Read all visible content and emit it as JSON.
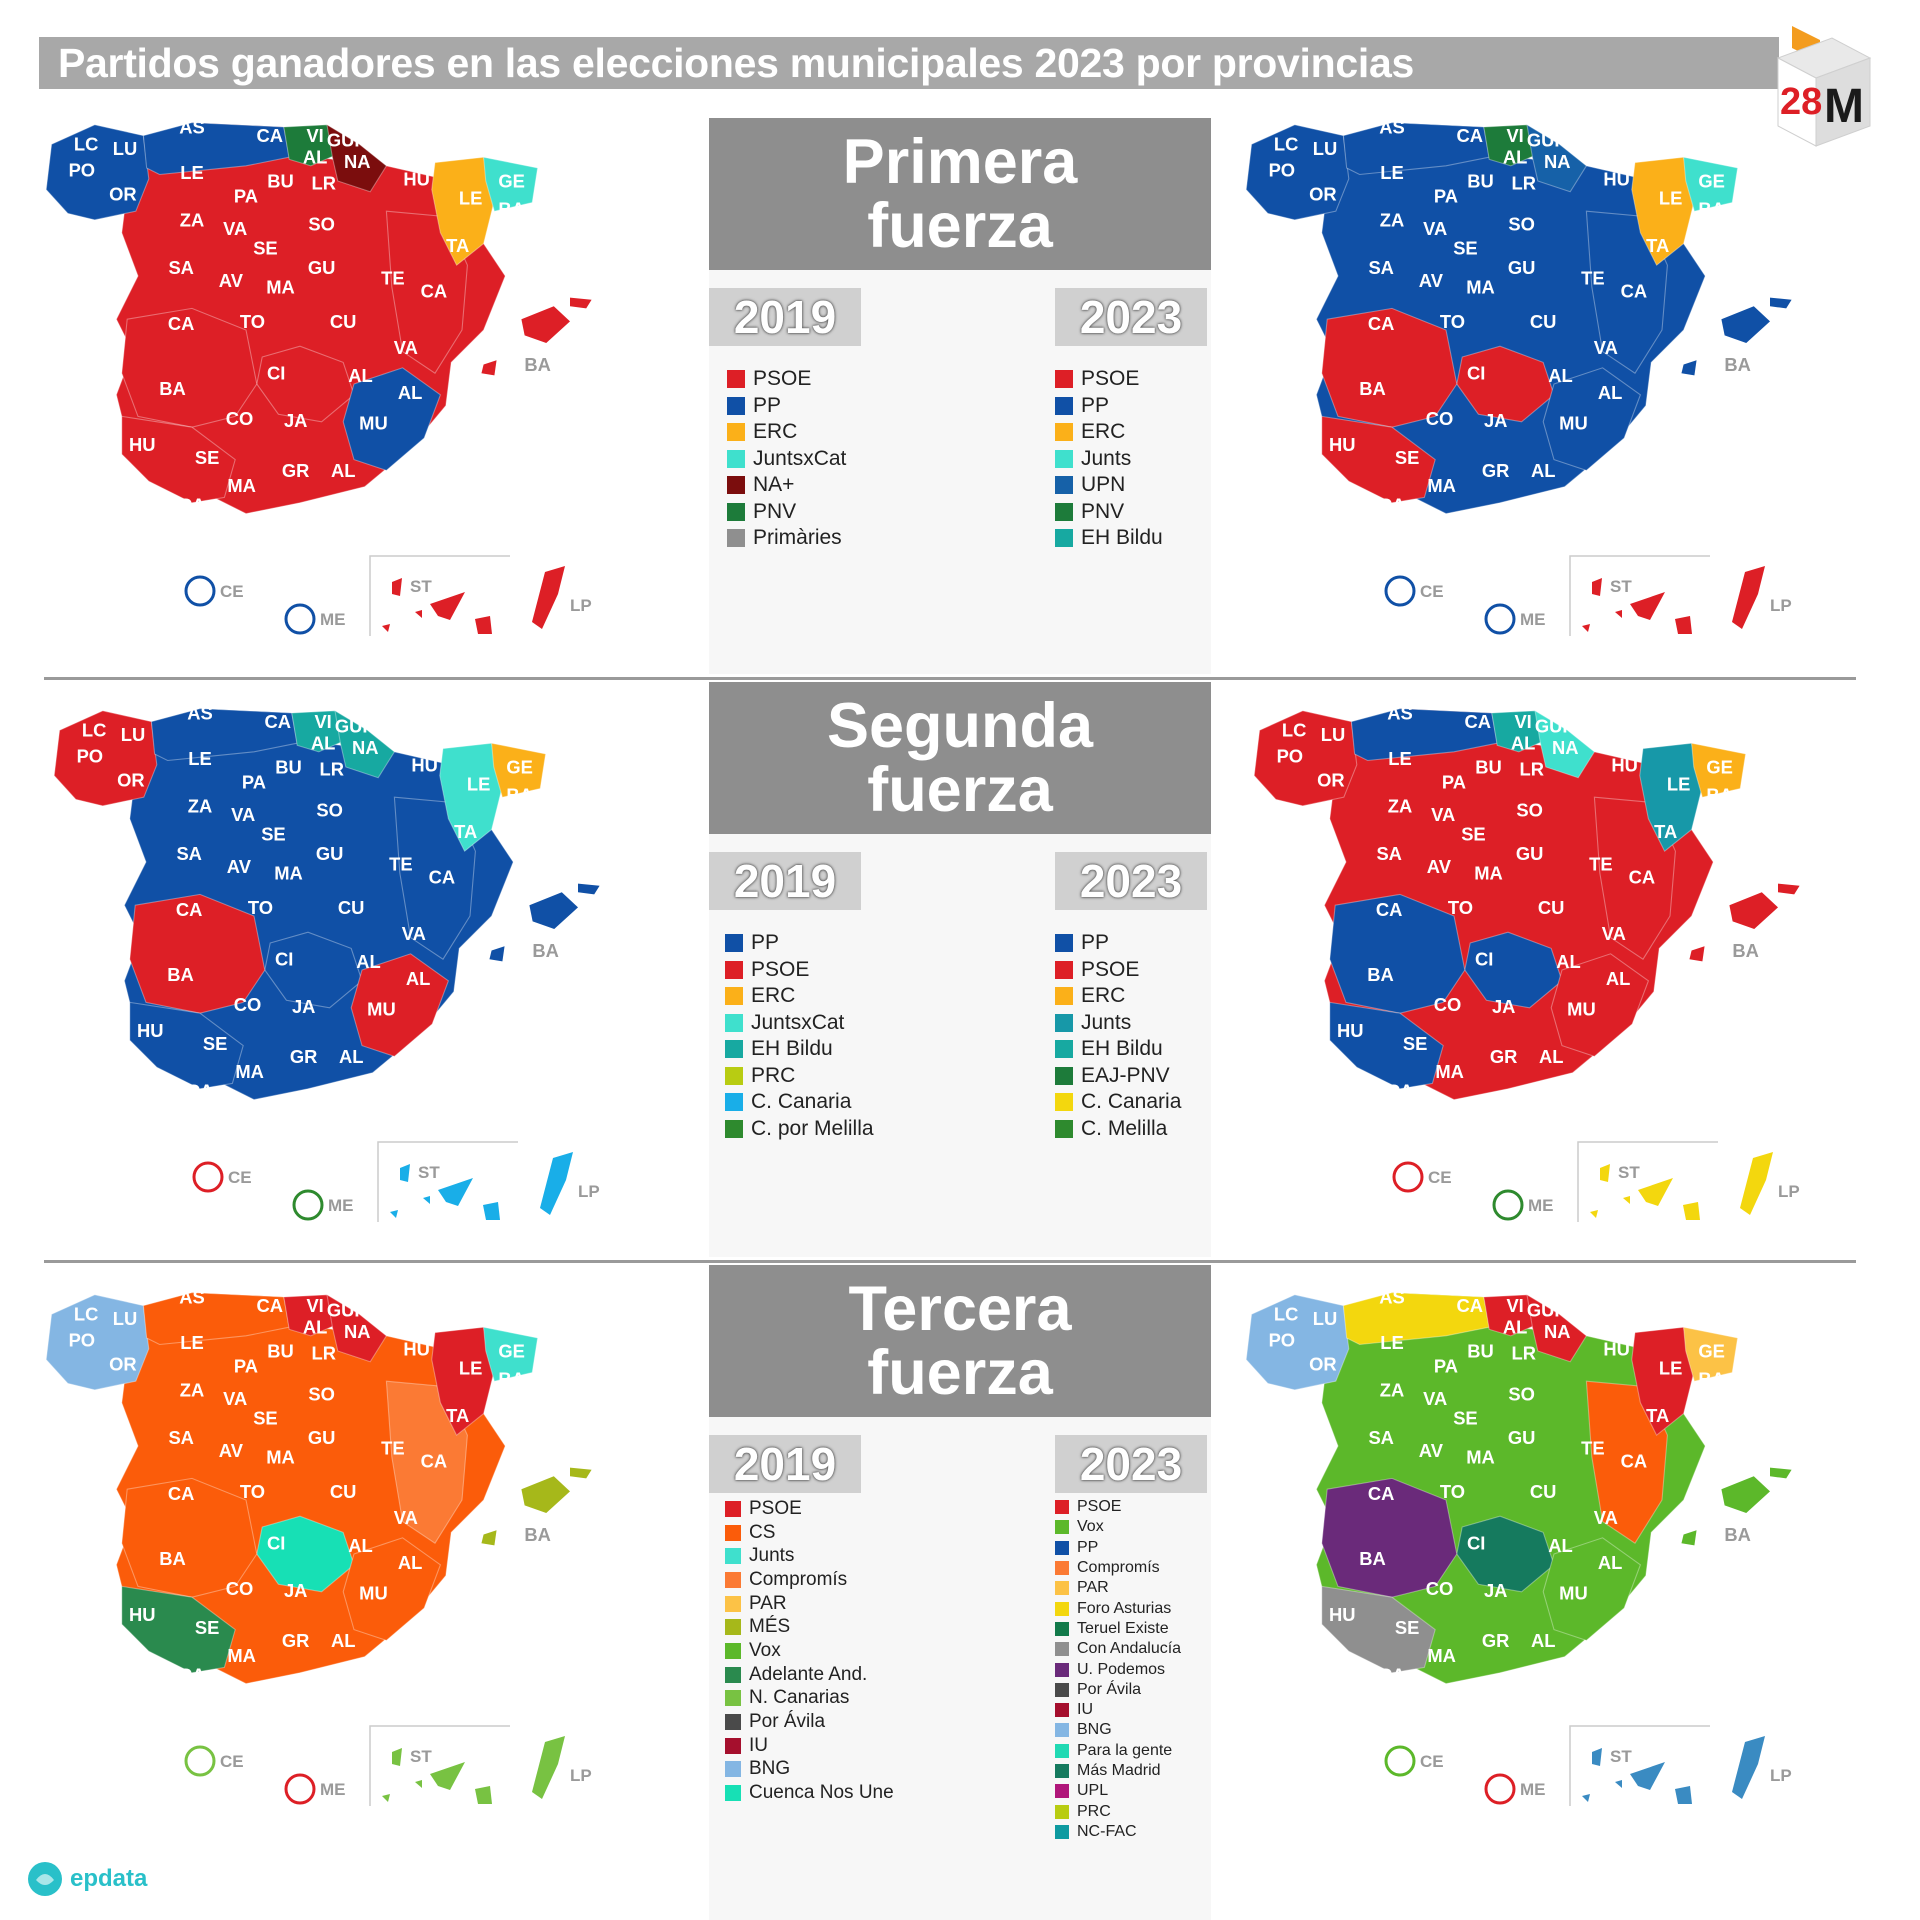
{
  "title": "Partidos ganadores en las elecciones municipales 2023 por provincias",
  "badge": {
    "text_num": "28",
    "text_letter": "M"
  },
  "logo": {
    "text": "epdata"
  },
  "province_labels": [
    "AS",
    "CA",
    "VI",
    "GUI",
    "AL",
    "NA",
    "LC",
    "LU",
    "PO",
    "OR",
    "LE",
    "BU",
    "LR",
    "HU",
    "GE",
    "PA",
    "ZA",
    "VA",
    "SO",
    "LE",
    "BA",
    "TA",
    "SA",
    "AV",
    "SE",
    "MA",
    "GU",
    "TE",
    "CA",
    "CA",
    "TO",
    "CU",
    "VA",
    "CI",
    "AL",
    "AL",
    "BA",
    "CO",
    "JA",
    "MU",
    "HU",
    "SE",
    "GR",
    "AL",
    "MA",
    "CA",
    "BA"
  ],
  "outside_labels": {
    "ce": "CE",
    "me": "ME",
    "st": "ST",
    "lp": "LP"
  },
  "sections": [
    {
      "heading_line1": "Primera",
      "heading_line2": "fuerza",
      "years": [
        "2019",
        "2023"
      ],
      "legend_2019": [
        {
          "label": "PSOE",
          "color": "#dd1f26"
        },
        {
          "label": "PP",
          "color": "#1050a6"
        },
        {
          "label": "ERC",
          "color": "#fbb019"
        },
        {
          "label": "JuntsxCat",
          "color": "#3fe0cd"
        },
        {
          "label": "NA+",
          "color": "#7b0d0d"
        },
        {
          "label": "PNV",
          "color": "#1d7b3a"
        },
        {
          "label": "Primàries",
          "color": "#8f8f8f"
        }
      ],
      "legend_2023": [
        {
          "label": "PSOE",
          "color": "#dd1f26"
        },
        {
          "label": "PP",
          "color": "#1050a6"
        },
        {
          "label": "ERC",
          "color": "#fbb019"
        },
        {
          "label": "Junts",
          "color": "#3fe0cd"
        },
        {
          "label": "UPN",
          "color": "#1661a8"
        },
        {
          "label": "PNV",
          "color": "#1d7b3a"
        },
        {
          "label": "EH Bildu",
          "color": "#17a9a1"
        }
      ],
      "map_2019": {
        "main": "#dd1f26",
        "west": "#1050a6",
        "north": "#1050a6",
        "center_spot": "#dd1f26",
        "center_west": "#dd1f26",
        "south_west": "#dd1f26",
        "south_east": "#1050a6",
        "east": "#dd1f26",
        "basque": "#1d7b3a",
        "navarra": "#7b0d0d",
        "catalonia": "#fbb019",
        "girona": "#3fe0cd",
        "islands": "#dd1f26",
        "canary": "#dd1f26",
        "ce_ring": "#1050a6",
        "me_ring": "#1050a6"
      },
      "map_2023": {
        "main": "#1050a6",
        "west": "#1050a6",
        "north": "#1050a6",
        "center_spot": "#dd1f26",
        "center_west": "#dd1f26",
        "south_west": "#dd1f26",
        "south_east": "#1050a6",
        "east": "#1050a6",
        "basque": "#1d7b3a",
        "navarra": "#1661a8",
        "catalonia": "#fbb019",
        "girona": "#3fe0cd",
        "islands": "#1050a6",
        "canary": "#dd1f26",
        "ce_ring": "#1050a6",
        "me_ring": "#1050a6"
      }
    },
    {
      "heading_line1": "Segunda",
      "heading_line2": "fuerza",
      "years": [
        "2019",
        "2023"
      ],
      "legend_2019": [
        {
          "label": "PP",
          "color": "#1050a6"
        },
        {
          "label": "PSOE",
          "color": "#dd1f26"
        },
        {
          "label": "ERC",
          "color": "#fbb019"
        },
        {
          "label": "JuntsxCat",
          "color": "#3fe0cd"
        },
        {
          "label": "EH Bildu",
          "color": "#17a9a1"
        },
        {
          "label": "PRC",
          "color": "#b8cc12"
        },
        {
          "label": "C. Canaria",
          "color": "#19aee8"
        },
        {
          "label": "C. por Melilla",
          "color": "#2e8a2e"
        }
      ],
      "legend_2023": [
        {
          "label": "PP",
          "color": "#1050a6"
        },
        {
          "label": "PSOE",
          "color": "#dd1f26"
        },
        {
          "label": "ERC",
          "color": "#fbb019"
        },
        {
          "label": "Junts",
          "color": "#1798a8"
        },
        {
          "label": "EH Bildu",
          "color": "#17a9a1"
        },
        {
          "label": "EAJ-PNV",
          "color": "#1d7b3a"
        },
        {
          "label": "C. Canaria",
          "color": "#f3d70e"
        },
        {
          "label": "C. Melilla",
          "color": "#2e8a2e"
        }
      ],
      "map_2019": {
        "main": "#1050a6",
        "west": "#dd1f26",
        "north": "#1050a6",
        "center_spot": "#1050a6",
        "center_west": "#dd1f26",
        "south_west": "#1050a6",
        "south_east": "#dd1f26",
        "east": "#1050a6",
        "basque": "#17a9a1",
        "navarra": "#17a9a1",
        "catalonia": "#3fe0cd",
        "girona": "#fbb019",
        "islands": "#1050a6",
        "canary": "#19aee8",
        "ce_ring": "#dd1f26",
        "me_ring": "#2e8a2e"
      },
      "map_2023": {
        "main": "#dd1f26",
        "west": "#dd1f26",
        "north": "#1050a6",
        "center_spot": "#1050a6",
        "center_west": "#1050a6",
        "south_west": "#1050a6",
        "south_east": "#dd1f26",
        "east": "#dd1f26",
        "basque": "#17a9a1",
        "navarra": "#3fe0cd",
        "catalonia": "#1798a8",
        "girona": "#fbb019",
        "islands": "#dd1f26",
        "canary": "#f3d70e",
        "ce_ring": "#dd1f26",
        "me_ring": "#2e8a2e"
      }
    },
    {
      "heading_line1": "Tercera",
      "heading_line2": "fuerza",
      "years": [
        "2019",
        "2023"
      ],
      "legend_2019": [
        {
          "label": "PSOE",
          "color": "#dd1f26"
        },
        {
          "label": "CS",
          "color": "#fb5c0a"
        },
        {
          "label": "Junts",
          "color": "#3fe0cd"
        },
        {
          "label": "Compromís",
          "color": "#fb7a34"
        },
        {
          "label": "PAR",
          "color": "#fcc246"
        },
        {
          "label": "MÉS",
          "color": "#a6b81a"
        },
        {
          "label": "Vox",
          "color": "#5cb82a"
        },
        {
          "label": "Adelante And.",
          "color": "#2a8a4e"
        },
        {
          "label": "N. Canarias",
          "color": "#78c242"
        },
        {
          "label": "Por Ávila",
          "color": "#4a4a4a"
        },
        {
          "label": "IU",
          "color": "#a50f2d"
        },
        {
          "label": "BNG",
          "color": "#84b6e3"
        },
        {
          "label": "Cuenca Nos Une",
          "color": "#17e0b5"
        }
      ],
      "legend_2023": [
        {
          "label": "PSOE",
          "color": "#dd1f26"
        },
        {
          "label": "Vox",
          "color": "#5cb82a"
        },
        {
          "label": "PP",
          "color": "#1050a6"
        },
        {
          "label": "Compromís",
          "color": "#fb7a34"
        },
        {
          "label": "PAR",
          "color": "#fcc246"
        },
        {
          "label": "Foro Asturias",
          "color": "#f3d70e"
        },
        {
          "label": "Teruel Existe",
          "color": "#127a4a"
        },
        {
          "label": "Con Andalucía",
          "color": "#8f8f8f"
        },
        {
          "label": "U. Podemos",
          "color": "#6a2a7a"
        },
        {
          "label": "Por Ávila",
          "color": "#4a4a4a"
        },
        {
          "label": "IU",
          "color": "#a50f2d"
        },
        {
          "label": "BNG",
          "color": "#84b6e3"
        },
        {
          "label": "Para la gente",
          "color": "#21d9b3"
        },
        {
          "label": "Más Madrid",
          "color": "#157a5e"
        },
        {
          "label": "UPL",
          "color": "#b0167a"
        },
        {
          "label": "PRC",
          "color": "#b8cc12"
        },
        {
          "label": "NC-FAC",
          "color": "#0e9aa0"
        }
      ],
      "map_2019": {
        "main": "#fb5c0a",
        "west": "#84b6e3",
        "north": "#fb5c0a",
        "center_spot": "#17e0b5",
        "center_west": "#fb5c0a",
        "south_west": "#2a8a4e",
        "south_east": "#fb5c0a",
        "east": "#fb7a34",
        "basque": "#dd1f26",
        "navarra": "#dd1f26",
        "catalonia": "#dd1f26",
        "girona": "#3fe0cd",
        "islands": "#a6b81a",
        "canary": "#78c242",
        "ce_ring": "#78c242",
        "me_ring": "#dd1f26"
      },
      "map_2023": {
        "main": "#5cb82a",
        "west": "#84b6e3",
        "north": "#f3d70e",
        "center_spot": "#157a5e",
        "center_west": "#6a2a7a",
        "south_west": "#8f8f8f",
        "south_east": "#5cb82a",
        "east": "#fb5c0a",
        "basque": "#dd1f26",
        "navarra": "#dd1f26",
        "catalonia": "#dd1f26",
        "girona": "#fcc246",
        "islands": "#5cb82a",
        "canary": "#3a8bc2",
        "ce_ring": "#5cb82a",
        "me_ring": "#dd1f26"
      }
    }
  ]
}
